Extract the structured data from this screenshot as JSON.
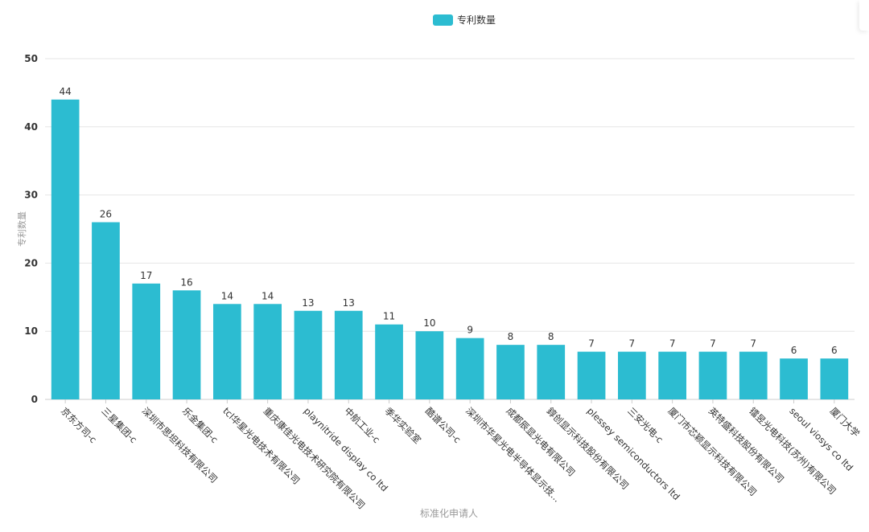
{
  "colors": {
    "bar": "#2cbcd1",
    "grid": "#e6e6e6",
    "axis": "#cccccc",
    "text": "#333333",
    "muted": "#999999"
  },
  "chart_data": {
    "type": "bar",
    "legend": {
      "label": "专利数量",
      "position": "top-center"
    },
    "xlabel": "标准化申请人",
    "ylabel": "专利数量",
    "ylim": [
      0,
      50
    ],
    "yticks": [
      0,
      10,
      20,
      30,
      40,
      50
    ],
    "grid": true,
    "categories": [
      "京东方司-c",
      "三星集团-c",
      "深圳市思坦科技有限公司",
      "乐金集团-c",
      "tcl华星光电技术有限公司",
      "重庆康佳光电技术研究院有限公司",
      "playnitride display co ltd",
      "中航工业-c",
      "季华实验室",
      "酷谱公司-c",
      "深圳市华星光电半导体显示技...",
      "成都辰显光电有限公司",
      "錞创显示科技股份有限公司",
      "plessey semiconductors ltd",
      "三安光电-c",
      "厦门市芯颖显示科技有限公司",
      "英特盛科技股份有限公司",
      "镭昱光电科技(苏州)有限公司",
      "seoul viosys co ltd",
      "厦门大学"
    ],
    "series": [
      {
        "name": "专利数量",
        "values": [
          44,
          26,
          17,
          16,
          14,
          14,
          13,
          13,
          11,
          10,
          9,
          8,
          8,
          7,
          7,
          7,
          7,
          7,
          6,
          6
        ]
      }
    ]
  }
}
